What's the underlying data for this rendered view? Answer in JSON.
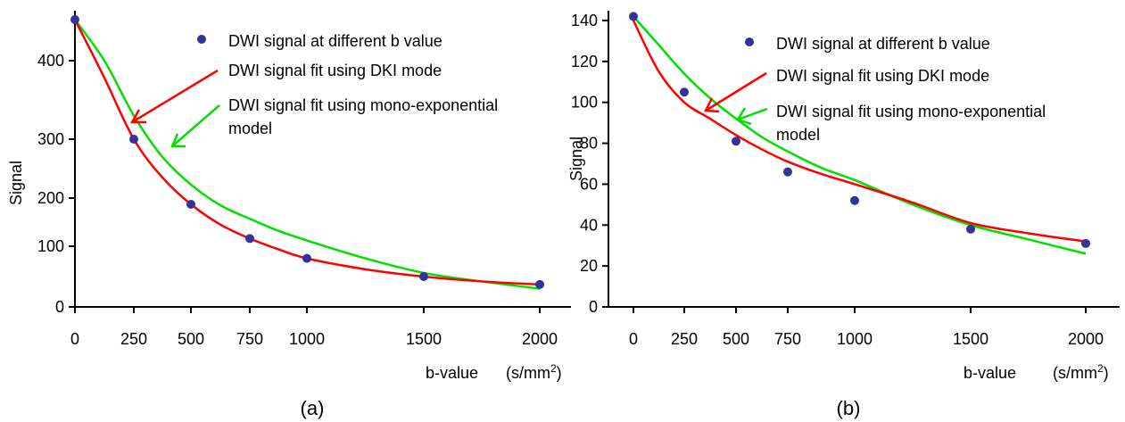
{
  "chart_data": [
    {
      "type": "scatter",
      "panel_label": "(a)",
      "xlabel": "b-value",
      "xunit_prefix": "(s/mm",
      "xunit_sup": "2",
      "xunit_suffix": ")",
      "ylabel": "Signal",
      "xlim": [
        0,
        2100
      ],
      "ylim": [
        0,
        470
      ],
      "y_scale": "piecewise",
      "x_ticks": [
        {
          "label": "0",
          "value": 0
        },
        {
          "label": "250",
          "value": 250
        },
        {
          "label": "500",
          "value": 500
        },
        {
          "label": "750",
          "value": 750
        },
        {
          "label": "1000",
          "value": 1000
        },
        {
          "label": "1500",
          "value": 1500
        },
        {
          "label": "2000",
          "value": 2000
        }
      ],
      "y_ticks": [
        {
          "label": "0",
          "value": 0
        },
        {
          "label": "100",
          "value": 100
        },
        {
          "label": "200",
          "value": 200
        },
        {
          "label": "300",
          "value": 300
        },
        {
          "label": "400",
          "value": 400
        }
      ],
      "points": {
        "name": "DWI signal at different b value",
        "color": "#333399",
        "x": [
          0,
          250,
          500,
          750,
          1000,
          1500,
          2000
        ],
        "y": [
          465,
          300,
          187,
          116,
          80,
          50,
          37
        ]
      },
      "dki_fit": {
        "name": "DWI signal fit using DKI mode",
        "color": "#ff0000",
        "x": [
          0,
          125,
          250,
          375,
          500,
          625,
          750,
          875,
          1000,
          1250,
          1500,
          1750,
          2000
        ],
        "y": [
          465,
          378,
          300,
          235,
          187,
          145,
          116,
          95,
          80,
          62,
          50,
          42,
          37
        ]
      },
      "mono_fit": {
        "name": "DWI signal fit using mono-exponential model",
        "color": "#00e000",
        "x": [
          0,
          125,
          250,
          375,
          500,
          625,
          750,
          875,
          1000,
          1250,
          1500,
          1750,
          2000
        ],
        "y": [
          465,
          400,
          330,
          270,
          223,
          185,
          157,
          132,
          112,
          80,
          56,
          42,
          30
        ]
      },
      "legend_placement": "top-right",
      "legend": [
        {
          "label": "DWI signal at different b value"
        },
        {
          "label": "DWI signal fit using DKI mode"
        },
        {
          "label": "DWI signal fit using mono-exponential",
          "label2": "model"
        }
      ],
      "grid": false
    },
    {
      "type": "scatter",
      "panel_label": "(b)",
      "xlabel": "b-value",
      "xunit_prefix": "(s/mm",
      "xunit_sup": "2",
      "xunit_suffix": ")",
      "ylabel": "Signal",
      "xlim": [
        -60,
        2150
      ],
      "ylim": [
        0,
        145
      ],
      "x_ticks": [
        {
          "label": "0",
          "value": 0
        },
        {
          "label": "250",
          "value": 250
        },
        {
          "label": "500",
          "value": 500
        },
        {
          "label": "750",
          "value": 750
        },
        {
          "label": "1000",
          "value": 1000
        },
        {
          "label": "1500",
          "value": 1500
        },
        {
          "label": "2000",
          "value": 2000
        }
      ],
      "y_ticks": [
        {
          "label": "0",
          "value": 0
        },
        {
          "label": "20",
          "value": 20
        },
        {
          "label": "40",
          "value": 40
        },
        {
          "label": "60",
          "value": 60
        },
        {
          "label": "80",
          "value": 80
        },
        {
          "label": "100",
          "value": 100
        },
        {
          "label": "120",
          "value": 120
        },
        {
          "label": "140",
          "value": 140
        }
      ],
      "points": {
        "name": "DWI signal at different b value",
        "color": "#333399",
        "x": [
          0,
          250,
          500,
          750,
          1000,
          1500,
          2000
        ],
        "y": [
          142,
          105,
          81,
          66,
          52,
          38,
          31
        ]
      },
      "dki_fit": {
        "name": "DWI signal fit using DKI mode",
        "color": "#ff0000",
        "x": [
          0,
          125,
          250,
          375,
          500,
          625,
          750,
          875,
          1000,
          1250,
          1500,
          1750,
          2000
        ],
        "y": [
          140,
          115,
          100,
          92,
          84,
          77,
          71,
          65,
          60,
          51,
          41,
          36,
          32
        ]
      },
      "mono_fit": {
        "name": "DWI signal fit using mono-exponential model",
        "color": "#00e000",
        "x": [
          0,
          125,
          250,
          375,
          500,
          625,
          750,
          875,
          1000,
          1250,
          1500,
          1750,
          2000
        ],
        "y": [
          142,
          128,
          114,
          102,
          92,
          83,
          76,
          68,
          62,
          50,
          40,
          33,
          26
        ]
      },
      "legend_placement": "top-right",
      "legend": [
        {
          "label": "DWI signal at different b value"
        },
        {
          "label": "DWI signal fit using DKI mode"
        },
        {
          "label": "DWI signal fit using mono-exponential",
          "label2": "model"
        }
      ],
      "grid": false
    }
  ]
}
